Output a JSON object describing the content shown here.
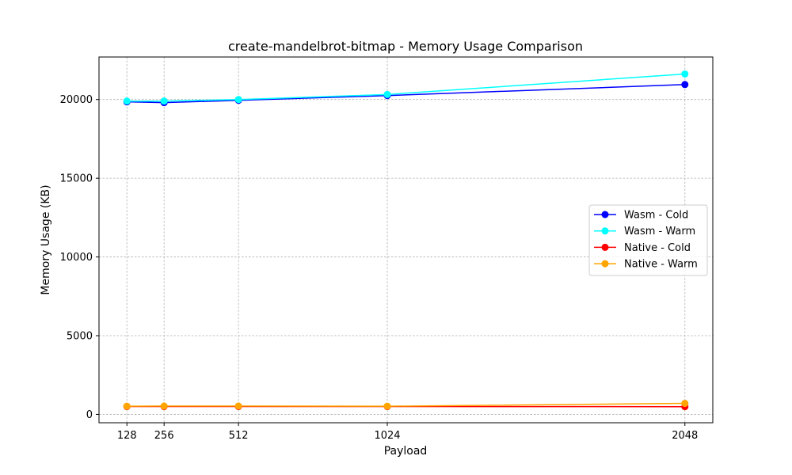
{
  "chart_data": {
    "type": "line",
    "title": "create-mandelbrot-bitmap - Memory Usage Comparison",
    "xlabel": "Payload",
    "ylabel": "Memory Usage (KB)",
    "x": [
      128,
      256,
      512,
      1024,
      2048
    ],
    "x_tick_labels": [
      "128",
      "256",
      "512",
      "1024",
      "2048"
    ],
    "y_ticks": [
      0,
      5000,
      10000,
      15000,
      20000
    ],
    "y_tick_labels": [
      "0",
      "5000",
      "10000",
      "15000",
      "20000"
    ],
    "xlim": [
      32,
      2144
    ],
    "ylim": [
      -530,
      22700
    ],
    "grid": true,
    "legend_position": "center-right",
    "series": [
      {
        "name": "Wasm - Cold",
        "color": "#0000ff",
        "values": [
          19850,
          19800,
          19950,
          20250,
          20950
        ]
      },
      {
        "name": "Wasm - Warm",
        "color": "#00ffff",
        "values": [
          19900,
          19900,
          20000,
          20320,
          21620
        ]
      },
      {
        "name": "Native - Cold",
        "color": "#ff0000",
        "values": [
          500,
          500,
          500,
          500,
          490
        ]
      },
      {
        "name": "Native - Warm",
        "color": "#ffa500",
        "values": [
          520,
          530,
          530,
          520,
          700
        ]
      }
    ]
  }
}
